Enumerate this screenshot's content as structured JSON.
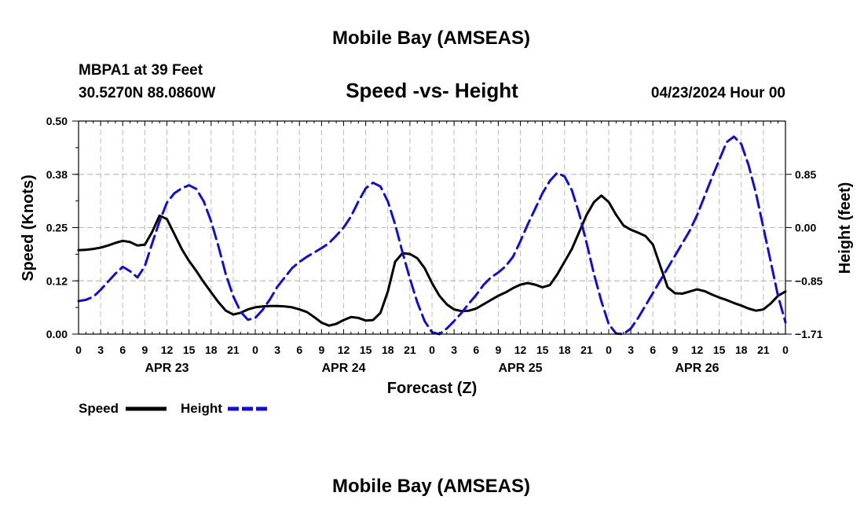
{
  "page_title": "Mobile Bay (AMSEAS)",
  "footer_title": "Mobile Bay (AMSEAS)",
  "station": {
    "name_depth": "MBPA1 at 39 Feet",
    "coords": "30.5270N  88.0860W"
  },
  "run_time": "04/23/2024 Hour 00",
  "colors": {
    "speed": "#000000",
    "height": "#1010c8",
    "grid": "#bdbdbd"
  },
  "legend": {
    "speed": "Speed",
    "height": "Height"
  },
  "chart_data": {
    "type": "line",
    "title": "Speed -vs- Height",
    "xlabel": "Forecast (Z)",
    "ylabel": "Speed (Knots)",
    "y2label": "Height (feet)",
    "x_unit": "forecast hour",
    "xlim": [
      0,
      96
    ],
    "ylim": [
      0,
      0.5
    ],
    "y2lim": [
      -1.71,
      1.71
    ],
    "grid": true,
    "legend_position": "bottom-left",
    "yticks": [
      "0.00",
      "0.12",
      "0.25",
      "0.38",
      "0.50"
    ],
    "ytick_values": [
      0,
      0.125,
      0.25,
      0.375,
      0.5
    ],
    "y2ticks": [
      "−1.71",
      "−0.85",
      "0.00",
      "0.85"
    ],
    "y2tick_values": [
      -1.71,
      -0.855,
      0,
      0.855
    ],
    "xticks": [
      "0",
      "3",
      "6",
      "9",
      "12",
      "15",
      "18",
      "21",
      "0",
      "3",
      "6",
      "9",
      "12",
      "15",
      "18",
      "21",
      "0",
      "3",
      "6",
      "9",
      "12",
      "15",
      "18",
      "21",
      "0",
      "3",
      "6",
      "9",
      "12",
      "15",
      "18",
      "21",
      "0"
    ],
    "day_labels": [
      {
        "label": "APR 23",
        "hour": 12
      },
      {
        "label": "APR 24",
        "hour": 36
      },
      {
        "label": "APR 25",
        "hour": 60
      },
      {
        "label": "APR 26",
        "hour": 84
      }
    ],
    "series": [
      {
        "name": "Speed",
        "axis": "left",
        "style": "solid",
        "x": [
          0,
          1,
          2,
          3,
          4,
          5,
          6,
          7,
          8,
          9,
          10,
          11,
          12,
          13,
          14,
          15,
          16,
          17,
          18,
          19,
          20,
          21,
          22,
          23,
          24,
          25,
          26,
          27,
          28,
          29,
          30,
          31,
          32,
          33,
          34,
          35,
          36,
          37,
          38,
          39,
          40,
          41,
          42,
          43,
          44,
          45,
          46,
          47,
          48,
          49,
          50,
          51,
          52,
          53,
          54,
          55,
          56,
          57,
          58,
          59,
          60,
          61,
          62,
          63,
          64,
          65,
          66,
          67,
          68,
          69,
          70,
          71,
          72,
          73,
          74,
          75,
          76,
          77,
          78,
          79,
          80,
          81,
          82,
          83,
          84,
          85,
          86,
          87,
          88,
          89,
          90,
          91,
          92,
          93,
          94,
          95,
          96
        ],
        "y": [
          0.197,
          0.198,
          0.2,
          0.203,
          0.208,
          0.214,
          0.219,
          0.216,
          0.208,
          0.21,
          0.24,
          0.278,
          0.27,
          0.235,
          0.2,
          0.172,
          0.148,
          0.122,
          0.098,
          0.075,
          0.055,
          0.046,
          0.05,
          0.058,
          0.063,
          0.065,
          0.066,
          0.066,
          0.065,
          0.063,
          0.058,
          0.052,
          0.04,
          0.027,
          0.02,
          0.024,
          0.033,
          0.04,
          0.038,
          0.032,
          0.033,
          0.05,
          0.1,
          0.17,
          0.19,
          0.188,
          0.178,
          0.155,
          0.12,
          0.09,
          0.07,
          0.058,
          0.054,
          0.055,
          0.06,
          0.07,
          0.08,
          0.09,
          0.098,
          0.108,
          0.116,
          0.12,
          0.116,
          0.11,
          0.115,
          0.14,
          0.17,
          0.2,
          0.24,
          0.28,
          0.31,
          0.325,
          0.31,
          0.28,
          0.255,
          0.245,
          0.238,
          0.23,
          0.21,
          0.16,
          0.11,
          0.096,
          0.095,
          0.1,
          0.105,
          0.101,
          0.093,
          0.086,
          0.08,
          0.073,
          0.067,
          0.06,
          0.055,
          0.058,
          0.072,
          0.09,
          0.1
        ]
      },
      {
        "name": "Height",
        "axis": "right",
        "style": "dashed",
        "x": [
          0,
          1,
          2,
          3,
          4,
          5,
          6,
          7,
          8,
          9,
          10,
          11,
          12,
          13,
          14,
          15,
          16,
          17,
          18,
          19,
          20,
          21,
          22,
          23,
          24,
          25,
          26,
          27,
          28,
          29,
          30,
          31,
          32,
          33,
          34,
          35,
          36,
          37,
          38,
          39,
          40,
          41,
          42,
          43,
          44,
          45,
          46,
          47,
          48,
          49,
          50,
          51,
          52,
          53,
          54,
          55,
          56,
          57,
          58,
          59,
          60,
          61,
          62,
          63,
          64,
          65,
          66,
          67,
          68,
          69,
          70,
          71,
          72,
          73,
          74,
          75,
          76,
          77,
          78,
          79,
          80,
          81,
          82,
          83,
          84,
          85,
          86,
          87,
          88,
          89,
          90,
          91,
          92,
          93,
          94,
          95,
          96
        ],
        "y": [
          -1.18,
          -1.16,
          -1.11,
          -1.0,
          -0.87,
          -0.74,
          -0.63,
          -0.7,
          -0.8,
          -0.62,
          -0.25,
          0.1,
          0.4,
          0.55,
          0.63,
          0.68,
          0.62,
          0.42,
          0.1,
          -0.3,
          -0.75,
          -1.1,
          -1.35,
          -1.48,
          -1.45,
          -1.32,
          -1.15,
          -0.95,
          -0.8,
          -0.65,
          -0.55,
          -0.47,
          -0.4,
          -0.33,
          -0.25,
          -0.13,
          0.0,
          0.18,
          0.42,
          0.63,
          0.72,
          0.66,
          0.42,
          0.05,
          -0.4,
          -0.82,
          -1.2,
          -1.5,
          -1.68,
          -1.71,
          -1.62,
          -1.5,
          -1.37,
          -1.22,
          -1.08,
          -0.92,
          -0.8,
          -0.72,
          -0.62,
          -0.47,
          -0.22,
          0.05,
          0.3,
          0.55,
          0.75,
          0.88,
          0.82,
          0.6,
          0.22,
          -0.25,
          -0.75,
          -1.18,
          -1.55,
          -1.7,
          -1.71,
          -1.62,
          -1.45,
          -1.25,
          -1.05,
          -0.85,
          -0.65,
          -0.45,
          -0.25,
          -0.05,
          0.2,
          0.5,
          0.8,
          1.08,
          1.37,
          1.46,
          1.34,
          1.0,
          0.55,
          0.0,
          -0.55,
          -1.1,
          -1.52
        ]
      }
    ]
  }
}
